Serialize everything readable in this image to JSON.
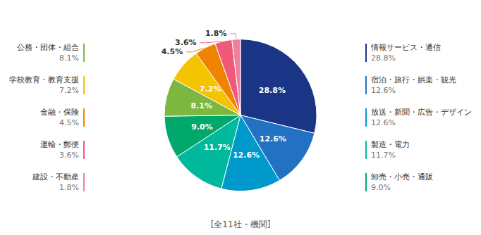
{
  "chart_data": {
    "type": "pie",
    "subtitle": "[全11社・機関]",
    "categories": [
      "情報サービス・通信",
      "宿泊・旅行・娯楽・観光",
      "放送・新聞・広告・デザイン",
      "製造・電力",
      "卸売・小売・通販",
      "公務・団体・組合",
      "学校教育・教育支援",
      "金融・保険",
      "運輸・郵便",
      "建設・不動産"
    ],
    "values": [
      28.8,
      12.6,
      12.6,
      11.7,
      9.0,
      8.1,
      7.2,
      4.5,
      3.6,
      1.8
    ],
    "value_labels": [
      "28.8%",
      "12.6%",
      "12.6%",
      "11.7%",
      "9.0%",
      "8.1%",
      "7.2%",
      "4.5%",
      "3.6%",
      "1.8%"
    ],
    "colors": [
      "#1a3585",
      "#2271c3",
      "#0099cc",
      "#00b89c",
      "#00a86b",
      "#7cb73f",
      "#f5c400",
      "#f08300",
      "#f05a78",
      "#f080a0"
    ],
    "data_labels": true,
    "legend": "sides"
  }
}
